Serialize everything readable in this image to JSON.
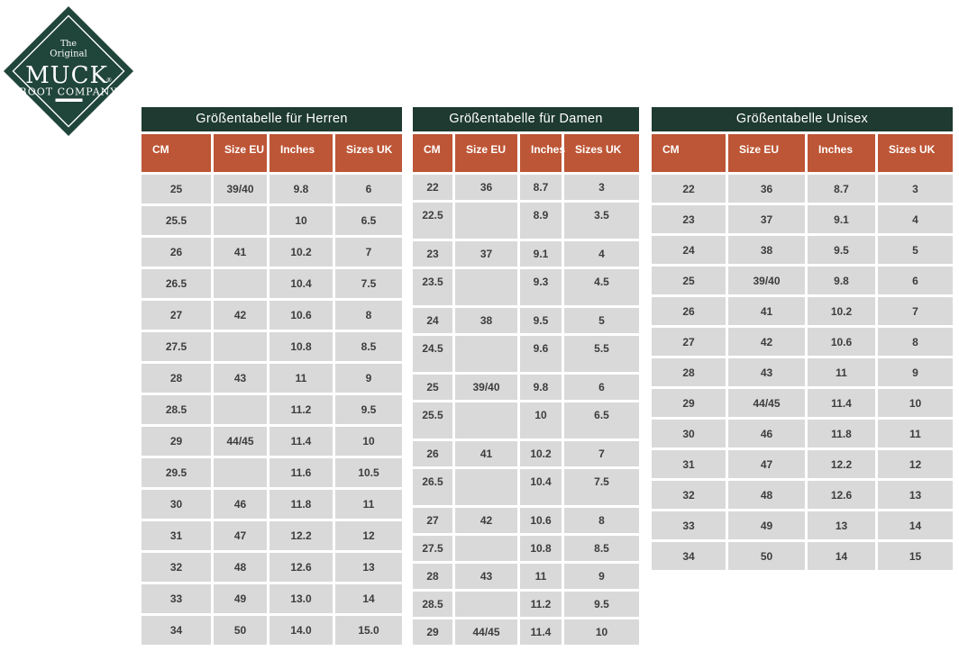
{
  "logo": {
    "tagline_top": "The",
    "tagline_bottom": "Original",
    "brand": "MUCK",
    "registered": "®",
    "subtitle": "BOOT COMPANY"
  },
  "colors": {
    "logo_green": "#20453a",
    "title_green": "#1e3a31",
    "header_orange": "#bd5636",
    "cell_gray": "#d9d9d9",
    "body_text": "#3d3d3d"
  },
  "chart_data": [
    {
      "type": "table",
      "title": "Größentabelle für Herren",
      "columns": [
        "CM",
        "Size EU",
        "Inches",
        "Sizes UK"
      ],
      "rows": [
        [
          "25",
          "39/40",
          "9.8",
          "6"
        ],
        [
          "25.5",
          "",
          "10",
          "6.5"
        ],
        [
          "26",
          "41",
          "10.2",
          "7"
        ],
        [
          "26.5",
          "",
          "10.4",
          "7.5"
        ],
        [
          "27",
          "42",
          "10.6",
          "8"
        ],
        [
          "27.5",
          "",
          "10.8",
          "8.5"
        ],
        [
          "28",
          "43",
          "11",
          "9"
        ],
        [
          "28.5",
          "",
          "11.2",
          "9.5"
        ],
        [
          "29",
          "44/45",
          "11.4",
          "10"
        ],
        [
          "29.5",
          "",
          "11.6",
          "10.5"
        ],
        [
          "30",
          "46",
          "11.8",
          "11"
        ],
        [
          "31",
          "47",
          "12.2",
          "12"
        ],
        [
          "32",
          "48",
          "12.6",
          "13"
        ],
        [
          "33",
          "49",
          "13.0",
          "14"
        ],
        [
          "34",
          "50",
          "14.0",
          "15.0"
        ]
      ]
    },
    {
      "type": "table",
      "title": "Größentabelle für Damen",
      "columns": [
        "CM",
        "Size EU",
        "Inches",
        "Sizes UK"
      ],
      "rows": [
        [
          "22",
          "36",
          "8.7",
          "3"
        ],
        [
          "22.5",
          "",
          "8.9",
          "3.5"
        ],
        [
          "23",
          "37",
          "9.1",
          "4"
        ],
        [
          "23.5",
          "",
          "9.3",
          "4.5"
        ],
        [
          "24",
          "38",
          "9.5",
          "5"
        ],
        [
          "24.5",
          "",
          "9.6",
          "5.5"
        ],
        [
          "25",
          "39/40",
          "9.8",
          "6"
        ],
        [
          "25.5",
          "",
          "10",
          "6.5"
        ],
        [
          "26",
          "41",
          "10.2",
          "7"
        ],
        [
          "26.5",
          "",
          "10.4",
          "7.5"
        ],
        [
          "27",
          "42",
          "10.6",
          "8"
        ],
        [
          "27.5",
          "",
          "10.8",
          "8.5"
        ],
        [
          "28",
          "43",
          "11",
          "9"
        ],
        [
          "28.5",
          "",
          "11.2",
          "9.5"
        ],
        [
          "29",
          "44/45",
          "11.4",
          "10"
        ]
      ]
    },
    {
      "type": "table",
      "title": "Größentabelle Unisex",
      "columns": [
        "CM",
        "Size EU",
        "Inches",
        "Sizes UK"
      ],
      "rows": [
        [
          "22",
          "36",
          "8.7",
          "3"
        ],
        [
          "23",
          "37",
          "9.1",
          "4"
        ],
        [
          "24",
          "38",
          "9.5",
          "5"
        ],
        [
          "25",
          "39/40",
          "9.8",
          "6"
        ],
        [
          "26",
          "41",
          "10.2",
          "7"
        ],
        [
          "27",
          "42",
          "10.6",
          "8"
        ],
        [
          "28",
          "43",
          "11",
          "9"
        ],
        [
          "29",
          "44/45",
          "11.4",
          "10"
        ],
        [
          "30",
          "46",
          "11.8",
          "11"
        ],
        [
          "31",
          "47",
          "12.2",
          "12"
        ],
        [
          "32",
          "48",
          "12.6",
          "13"
        ],
        [
          "33",
          "49",
          "13",
          "14"
        ],
        [
          "34",
          "50",
          "14",
          "15"
        ]
      ]
    }
  ]
}
